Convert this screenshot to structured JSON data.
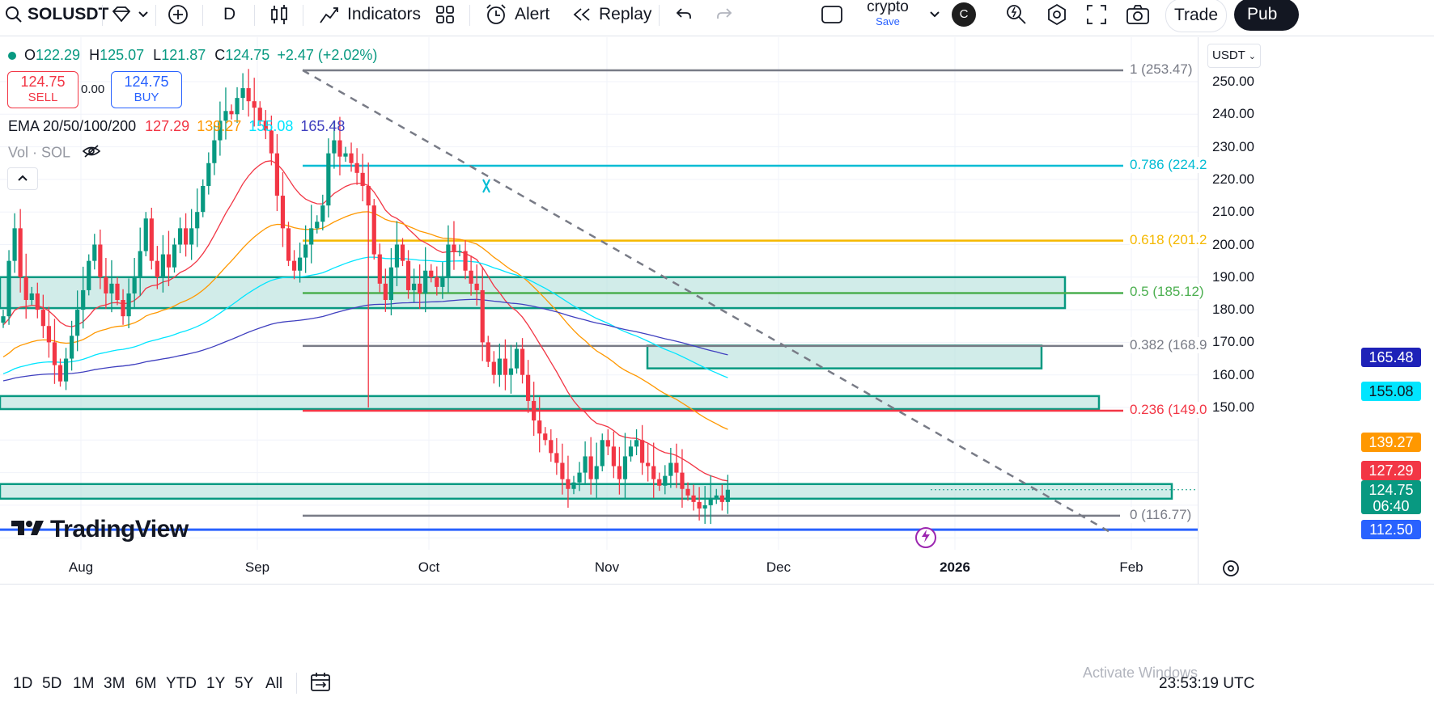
{
  "toolbar": {
    "symbol": "SOLUSDT",
    "interval": "D",
    "indicators_label": "Indicators",
    "alert_label": "Alert",
    "replay_label": "Replay",
    "layout_name": "crypto",
    "save_label": "Save",
    "avatar_letter": "C",
    "trade_label": "Trade",
    "publish_label": "Pub"
  },
  "legend": {
    "open_label": "O",
    "open": "122.29",
    "high_label": "H",
    "high": "125.07",
    "low_label": "L",
    "low": "121.87",
    "close_label": "C",
    "close": "124.75",
    "change": "+2.47 (+2.02%)",
    "sell_price": "124.75",
    "sell_label": "SELL",
    "spread": "0.00",
    "buy_price": "124.75",
    "buy_label": "BUY",
    "ema_title": "EMA 20/50/100/200",
    "ema20": "127.29",
    "ema50": "139.27",
    "ema100": "155.08",
    "ema200": "165.48",
    "vol_label": "Vol · SOL"
  },
  "currency": "USDT",
  "price_axis": [
    "250.00",
    "240.00",
    "230.00",
    "220.00",
    "210.00",
    "200.00",
    "190.00",
    "180.00",
    "170.00",
    "160.00",
    "150.00"
  ],
  "fib_levels": [
    {
      "label": "1 (253.47)",
      "color": "#787b86"
    },
    {
      "label": "0.786 (224.2",
      "color": "#00bcd4"
    },
    {
      "label": "0.618 (201.2",
      "color": "#f5b800"
    },
    {
      "label": "0.5 (185.12)",
      "color": "#4caf50"
    },
    {
      "label": "0.382 (168.9",
      "color": "#787b86"
    },
    {
      "label": "0.236 (149.0",
      "color": "#f23645"
    },
    {
      "label": "0 (116.77)",
      "color": "#787b86"
    }
  ],
  "price_labels": {
    "ema200": "165.48",
    "ema100": "155.08",
    "ema50": "139.27",
    "ema20": "127.29",
    "last": "124.75",
    "countdown": "06:40",
    "hline": "112.50"
  },
  "colors": {
    "up": "#089981",
    "down": "#f23645",
    "ema20": "#f23645",
    "ema50": "#ff9800",
    "ema100": "#00e5ff",
    "ema200": "#3f3fbf",
    "zone_fill": "#b2dfdb",
    "zone_border": "#089981",
    "hline": "#2962ff"
  },
  "time_axis": [
    "Aug",
    "Sep",
    "Oct",
    "Nov",
    "Dec",
    "2026",
    "Feb"
  ],
  "watermark": "TradingView",
  "ranges": [
    "1D",
    "5D",
    "1M",
    "3M",
    "6M",
    "YTD",
    "1Y",
    "5Y",
    "All"
  ],
  "clock": "23:53:19 UTC",
  "activate_windows": "Activate Windows",
  "chart_data": {
    "type": "candlestick",
    "symbol": "SOLUSDT",
    "interval": "D",
    "y_range": [
      105,
      260
    ],
    "closes_approx": [
      178,
      195,
      205,
      190,
      183,
      185,
      180,
      175,
      170,
      163,
      158,
      165,
      172,
      180,
      186,
      195,
      200,
      190,
      185,
      188,
      183,
      178,
      185,
      190,
      198,
      208,
      195,
      190,
      197,
      193,
      200,
      205,
      200,
      205,
      210,
      218,
      225,
      232,
      238,
      241,
      240,
      245,
      248,
      244,
      242,
      238,
      235,
      228,
      215,
      205,
      195,
      192,
      196,
      200,
      205,
      207,
      212,
      228,
      232,
      227,
      228,
      225,
      222,
      218,
      212,
      197,
      188,
      183,
      193,
      200,
      195,
      186,
      188,
      185,
      192,
      190,
      187,
      190,
      200,
      198,
      198,
      192,
      188,
      186,
      170,
      164,
      160,
      165,
      160,
      162,
      168,
      160,
      152,
      146,
      142,
      140,
      136,
      133,
      128,
      125,
      127,
      130,
      135,
      128,
      132,
      140,
      138,
      132,
      128,
      135,
      138,
      140,
      133,
      132,
      128,
      126,
      129,
      133,
      130,
      125,
      123,
      121,
      119,
      120,
      122,
      123,
      121,
      124.75
    ],
    "fib_values": [
      253.47,
      224.2,
      201.2,
      185.12,
      168.9,
      149.0,
      116.77
    ],
    "ema_last": {
      "20": 127.29,
      "50": 139.27,
      "100": 155.08,
      "200": 165.48
    }
  }
}
